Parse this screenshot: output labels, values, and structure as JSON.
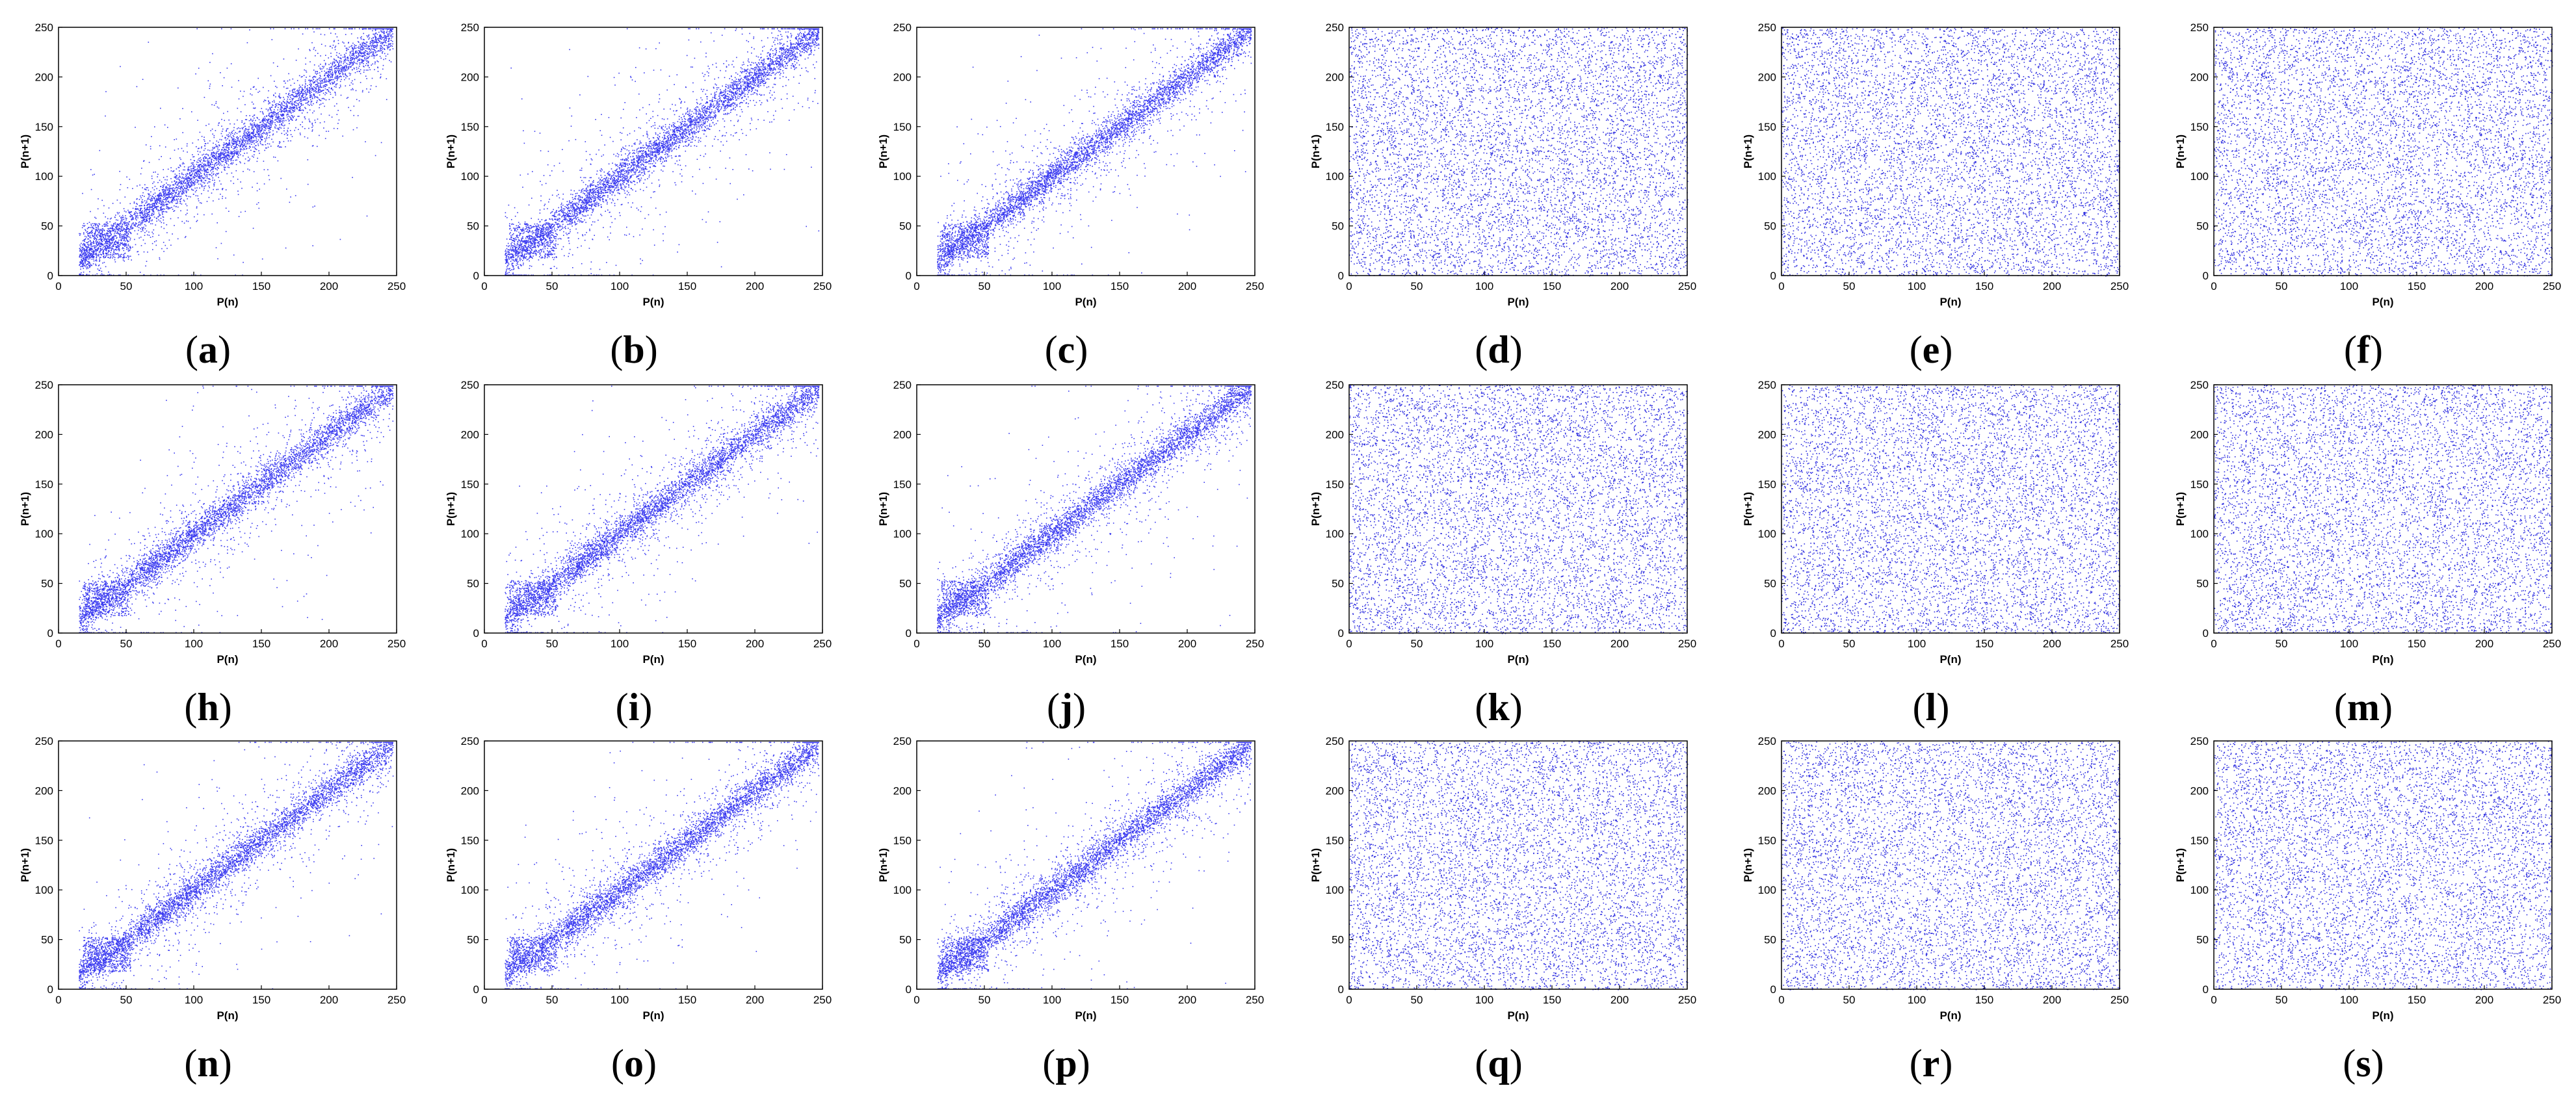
{
  "chart_data": [
    {
      "type": "scatter",
      "panel": "(a)",
      "pattern": "correlated",
      "xlabel": "P(n)",
      "ylabel": "P(n+1)",
      "xlim": [
        0,
        250
      ],
      "ylim": [
        0,
        250
      ],
      "xticks": [
        0,
        50,
        100,
        150,
        200,
        250
      ],
      "yticks": [
        0,
        50,
        100,
        150,
        200,
        250
      ],
      "point_color": "#3a3af0"
    },
    {
      "type": "scatter",
      "panel": "(b)",
      "pattern": "correlated",
      "xlabel": "P(n)",
      "ylabel": "P(n+1)",
      "xlim": [
        0,
        250
      ],
      "ylim": [
        0,
        250
      ],
      "xticks": [
        0,
        50,
        100,
        150,
        200,
        250
      ],
      "yticks": [
        0,
        50,
        100,
        150,
        200,
        250
      ],
      "point_color": "#3a3af0"
    },
    {
      "type": "scatter",
      "panel": "(c)",
      "pattern": "correlated",
      "xlabel": "P(n)",
      "ylabel": "P(n+1)",
      "xlim": [
        0,
        250
      ],
      "ylim": [
        0,
        250
      ],
      "xticks": [
        0,
        50,
        100,
        150,
        200,
        250
      ],
      "yticks": [
        0,
        50,
        100,
        150,
        200,
        250
      ],
      "point_color": "#3a3af0"
    },
    {
      "type": "scatter",
      "panel": "(d)",
      "pattern": "uniform",
      "xlabel": "P(n)",
      "ylabel": "P(n+1)",
      "xlim": [
        0,
        250
      ],
      "ylim": [
        0,
        250
      ],
      "xticks": [
        0,
        50,
        100,
        150,
        200,
        250
      ],
      "yticks": [
        0,
        50,
        100,
        150,
        200,
        250
      ],
      "point_color": "#2f2fe0"
    },
    {
      "type": "scatter",
      "panel": "(e)",
      "pattern": "uniform",
      "xlabel": "P(n)",
      "ylabel": "P(n+1)",
      "xlim": [
        0,
        250
      ],
      "ylim": [
        0,
        250
      ],
      "xticks": [
        0,
        50,
        100,
        150,
        200,
        250
      ],
      "yticks": [
        0,
        50,
        100,
        150,
        200,
        250
      ],
      "point_color": "#2f2fe0"
    },
    {
      "type": "scatter",
      "panel": "(f)",
      "pattern": "uniform",
      "xlabel": "P(n)",
      "ylabel": "P(n+1)",
      "xlim": [
        0,
        250
      ],
      "ylim": [
        0,
        250
      ],
      "xticks": [
        0,
        50,
        100,
        150,
        200,
        250
      ],
      "yticks": [
        0,
        50,
        100,
        150,
        200,
        250
      ],
      "point_color": "#2f2fe0"
    },
    {
      "type": "scatter",
      "panel": "(h)",
      "pattern": "correlated",
      "xlabel": "P(n)",
      "ylabel": "P(n+1)",
      "xlim": [
        0,
        250
      ],
      "ylim": [
        0,
        250
      ],
      "xticks": [
        0,
        50,
        100,
        150,
        200,
        250
      ],
      "yticks": [
        0,
        50,
        100,
        150,
        200,
        250
      ],
      "point_color": "#3a3af0"
    },
    {
      "type": "scatter",
      "panel": "(i)",
      "pattern": "correlated",
      "xlabel": "P(n)",
      "ylabel": "P(n+1)",
      "xlim": [
        0,
        250
      ],
      "ylim": [
        0,
        250
      ],
      "xticks": [
        0,
        50,
        100,
        150,
        200,
        250
      ],
      "yticks": [
        0,
        50,
        100,
        150,
        200,
        250
      ],
      "point_color": "#3a3af0"
    },
    {
      "type": "scatter",
      "panel": "(j)",
      "pattern": "correlated",
      "xlabel": "P(n)",
      "ylabel": "P(n+1)",
      "xlim": [
        0,
        250
      ],
      "ylim": [
        0,
        250
      ],
      "xticks": [
        0,
        50,
        100,
        150,
        200,
        250
      ],
      "yticks": [
        0,
        50,
        100,
        150,
        200,
        250
      ],
      "point_color": "#3a3af0"
    },
    {
      "type": "scatter",
      "panel": "(k)",
      "pattern": "uniform",
      "xlabel": "P(n)",
      "ylabel": "P(n+1)",
      "xlim": [
        0,
        250
      ],
      "ylim": [
        0,
        250
      ],
      "xticks": [
        0,
        50,
        100,
        150,
        200,
        250
      ],
      "yticks": [
        0,
        50,
        100,
        150,
        200,
        250
      ],
      "point_color": "#2f2fe0"
    },
    {
      "type": "scatter",
      "panel": "(l)",
      "pattern": "uniform",
      "xlabel": "P(n)",
      "ylabel": "P(n+1)",
      "xlim": [
        0,
        250
      ],
      "ylim": [
        0,
        250
      ],
      "xticks": [
        0,
        50,
        100,
        150,
        200,
        250
      ],
      "yticks": [
        0,
        50,
        100,
        150,
        200,
        250
      ],
      "point_color": "#2f2fe0"
    },
    {
      "type": "scatter",
      "panel": "(m)",
      "pattern": "uniform",
      "xlabel": "P(n)",
      "ylabel": "P(n+1)",
      "xlim": [
        0,
        250
      ],
      "ylim": [
        0,
        250
      ],
      "xticks": [
        0,
        50,
        100,
        150,
        200,
        250
      ],
      "yticks": [
        0,
        50,
        100,
        150,
        200,
        250
      ],
      "point_color": "#2f2fe0"
    },
    {
      "type": "scatter",
      "panel": "(n)",
      "pattern": "correlated",
      "xlabel": "P(n)",
      "ylabel": "P(n+1)",
      "xlim": [
        0,
        250
      ],
      "ylim": [
        0,
        250
      ],
      "xticks": [
        0,
        50,
        100,
        150,
        200,
        250
      ],
      "yticks": [
        0,
        50,
        100,
        150,
        200,
        250
      ],
      "point_color": "#3a3af0"
    },
    {
      "type": "scatter",
      "panel": "(o)",
      "pattern": "correlated",
      "xlabel": "P(n)",
      "ylabel": "P(n+1)",
      "xlim": [
        0,
        250
      ],
      "ylim": [
        0,
        250
      ],
      "xticks": [
        0,
        50,
        100,
        150,
        200,
        250
      ],
      "yticks": [
        0,
        50,
        100,
        150,
        200,
        250
      ],
      "point_color": "#3a3af0"
    },
    {
      "type": "scatter",
      "panel": "(p)",
      "pattern": "correlated",
      "xlabel": "P(n)",
      "ylabel": "P(n+1)",
      "xlim": [
        0,
        250
      ],
      "ylim": [
        0,
        250
      ],
      "xticks": [
        0,
        50,
        100,
        150,
        200,
        250
      ],
      "yticks": [
        0,
        50,
        100,
        150,
        200,
        250
      ],
      "point_color": "#3a3af0"
    },
    {
      "type": "scatter",
      "panel": "(q)",
      "pattern": "uniform",
      "xlabel": "P(n)",
      "ylabel": "P(n+1)",
      "xlim": [
        0,
        250
      ],
      "ylim": [
        0,
        250
      ],
      "xticks": [
        0,
        50,
        100,
        150,
        200,
        250
      ],
      "yticks": [
        0,
        50,
        100,
        150,
        200,
        250
      ],
      "point_color": "#2f2fe0"
    },
    {
      "type": "scatter",
      "panel": "(r)",
      "pattern": "uniform",
      "xlabel": "P(n)",
      "ylabel": "P(n+1)",
      "xlim": [
        0,
        250
      ],
      "ylim": [
        0,
        250
      ],
      "xticks": [
        0,
        50,
        100,
        150,
        200,
        250
      ],
      "yticks": [
        0,
        50,
        100,
        150,
        200,
        250
      ],
      "point_color": "#2f2fe0"
    },
    {
      "type": "scatter",
      "panel": "(s)",
      "pattern": "uniform",
      "xlabel": "P(n)",
      "ylabel": "P(n+1)",
      "xlim": [
        0,
        250
      ],
      "ylim": [
        0,
        250
      ],
      "xticks": [
        0,
        50,
        100,
        150,
        200,
        250
      ],
      "yticks": [
        0,
        50,
        100,
        150,
        200,
        250
      ],
      "point_color": "#2f2fe0"
    }
  ],
  "captions": [
    "(a)",
    "(b)",
    "(c)",
    "(d)",
    "(e)",
    "(f)",
    "(h)",
    "(i)",
    "(j)",
    "(k)",
    "(l)",
    "(m)",
    "(n)",
    "(o)",
    "(p)",
    "(q)",
    "(r)",
    "(s)"
  ]
}
